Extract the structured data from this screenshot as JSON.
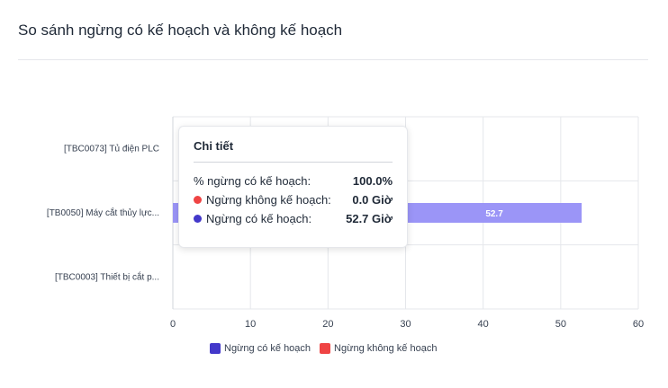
{
  "header": {
    "title": "So sánh ngừng có kế hoạch và không kế hoạch"
  },
  "colors": {
    "planned": "#4338ca",
    "unplanned": "#ef4444",
    "bar_fill": "#9b95f7",
    "grid": "#e5e7eb"
  },
  "chart_data": {
    "type": "bar",
    "orientation": "horizontal",
    "stacked": true,
    "categories": [
      "[TBC0073] Tủ điện PLC",
      "[TB0050] Máy cắt thủy lực...",
      "[TBC0003] Thiết bị cắt p..."
    ],
    "series": [
      {
        "name": "Ngừng có kế hoạch",
        "values": [
          0,
          52.7,
          0
        ]
      },
      {
        "name": "Ngừng không kế hoạch",
        "values": [
          0,
          0,
          0
        ]
      }
    ],
    "data_labels": [
      "",
      "52.7",
      ""
    ],
    "xlim": [
      0,
      60
    ],
    "xticks": [
      "0",
      "10",
      "20",
      "30",
      "40",
      "50",
      "60"
    ],
    "grid": true,
    "legend_position": "bottom"
  },
  "tooltip": {
    "title": "Chi tiết",
    "rows": [
      {
        "label": "% ngừng có kế hoạch:",
        "value": "100.0%"
      },
      {
        "label": "Ngừng không kế hoạch:",
        "value": "0.0 Giờ"
      },
      {
        "label": "Ngừng có kế hoạch:",
        "value": "52.7 Giờ"
      }
    ]
  }
}
